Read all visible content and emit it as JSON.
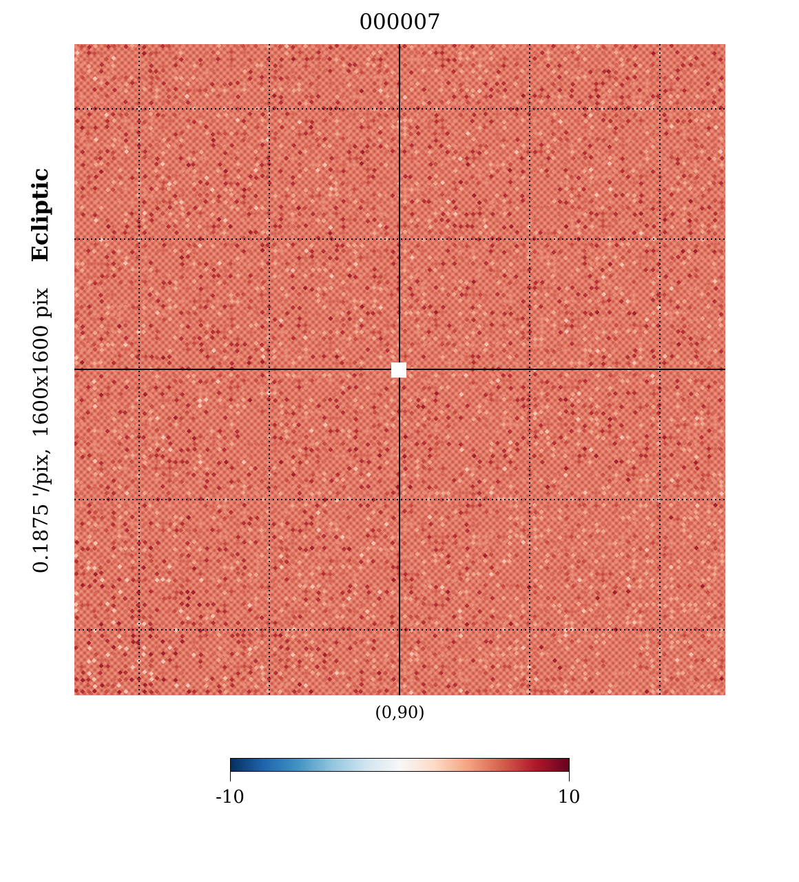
{
  "chart_data": {
    "type": "heatmap",
    "title": "000007",
    "projection_center_label": "(0,90)",
    "coordinate_system": "Ecliptic",
    "resolution_label": "0.1875 '/pix,",
    "size_label": "1600x1600 pix",
    "colorbar": {
      "min": -10,
      "max": 10,
      "min_label": "-10",
      "max_label": "10",
      "colormap": "RdBu_r"
    },
    "graticule": "dotted",
    "axes_cross": true,
    "background_color": "#e07a68",
    "colors": {
      "colorbar_stops": [
        "#053061",
        "#2166ac",
        "#4393c3",
        "#92c5de",
        "#d1e5f0",
        "#f7f7f7",
        "#fddbc7",
        "#f4a582",
        "#d6604d",
        "#b2182b",
        "#67001f"
      ],
      "center_spot": "#ffffff"
    }
  }
}
